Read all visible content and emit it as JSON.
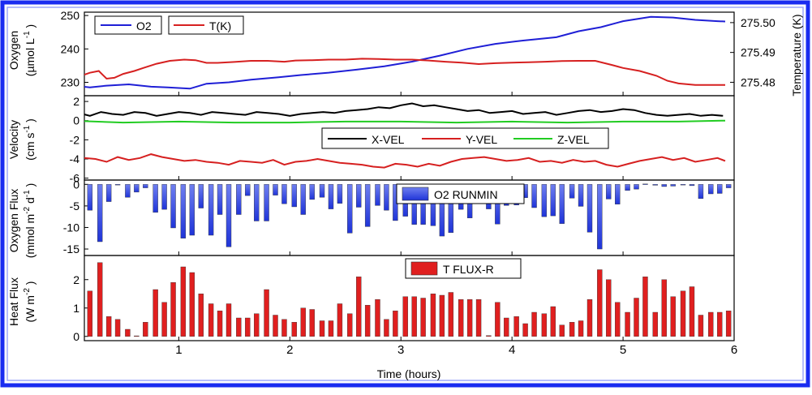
{
  "chart_data": [
    {
      "type": "line",
      "panel": "oxygen-temperature",
      "ylabel": "Oxygen (µmol L⁻¹)",
      "ylabel_lines": [
        "Oxygen",
        "(µmol L",
        "-1",
        ")"
      ],
      "ylim": [
        226,
        251
      ],
      "yticks": [
        "230",
        "240",
        "250"
      ],
      "y2label": "Temperature (K)",
      "y2lim": [
        275.4755,
        275.5035
      ],
      "y2ticks": [
        "275.48",
        "275.49",
        "275.50"
      ],
      "legend": "top-left",
      "series": [
        {
          "name": "O2",
          "color": "#1f1fd6",
          "axis": "left",
          "x": [
            0.05,
            0.2,
            0.35,
            0.55,
            0.75,
            0.9,
            1.1,
            1.25,
            1.45,
            1.65,
            1.9,
            2.1,
            2.35,
            2.6,
            2.85,
            3.1,
            3.35,
            3.6,
            3.85,
            4.1,
            4.4,
            4.6,
            4.8,
            5.0,
            5.25,
            5.45,
            5.65,
            5.85,
            5.92
          ],
          "values": [
            229,
            228.5,
            229,
            229.4,
            228.7,
            228.5,
            228.1,
            229.6,
            230,
            230.8,
            231.5,
            232.2,
            232.9,
            233.8,
            234.8,
            236.2,
            238,
            240,
            241.5,
            242.5,
            243.5,
            245.3,
            246.5,
            248.3,
            249.6,
            249.4,
            248.7,
            248.3,
            248.2
          ]
        },
        {
          "name": "T(K)",
          "color": "#d62020",
          "axis": "right",
          "x": [
            0.05,
            0.12,
            0.2,
            0.28,
            0.35,
            0.42,
            0.5,
            0.6,
            0.68,
            0.8,
            0.92,
            1.05,
            1.15,
            1.25,
            1.35,
            1.5,
            1.65,
            1.8,
            1.95,
            2.05,
            2.2,
            2.35,
            2.5,
            2.65,
            2.8,
            2.95,
            3.1,
            3.25,
            3.4,
            3.55,
            3.7,
            3.85,
            4.0,
            4.15,
            4.3,
            4.45,
            4.6,
            4.75,
            4.9,
            5.0,
            5.15,
            5.3,
            5.4,
            5.5,
            5.65,
            5.8,
            5.92
          ],
          "values": [
            275.4818,
            275.4822,
            275.4832,
            275.4838,
            275.4812,
            275.4815,
            275.4828,
            275.4838,
            275.4848,
            275.4862,
            275.4872,
            275.4876,
            275.4874,
            275.4865,
            275.4865,
            275.4868,
            275.4872,
            275.4872,
            275.4869,
            275.4873,
            275.4874,
            275.4876,
            275.4876,
            275.4879,
            275.4878,
            275.4876,
            275.4876,
            275.4873,
            275.4869,
            275.4866,
            275.4861,
            275.4864,
            275.4866,
            275.4867,
            275.4869,
            275.4871,
            275.4872,
            275.4872,
            275.4858,
            275.4848,
            275.4838,
            275.4822,
            275.4805,
            275.4796,
            275.4791,
            275.4791,
            275.4791
          ]
        }
      ]
    },
    {
      "type": "line",
      "panel": "velocity",
      "ylabel": "Velocity (cm s⁻¹)",
      "ylabel_lines": [
        "Velocity",
        "(cm s",
        "-1",
        ")"
      ],
      "ylim": [
        -6.2,
        2.6
      ],
      "yticks": [
        "2",
        "0",
        "-2",
        "-4",
        "-6"
      ],
      "legend": "right",
      "series": [
        {
          "name": "X-VEL",
          "color": "#000000",
          "x": [
            0.0,
            0.1,
            0.2,
            0.3,
            0.4,
            0.5,
            0.6,
            0.7,
            0.8,
            0.9,
            1.0,
            1.1,
            1.2,
            1.3,
            1.4,
            1.5,
            1.6,
            1.7,
            1.8,
            1.9,
            2.0,
            2.1,
            2.2,
            2.3,
            2.4,
            2.5,
            2.6,
            2.7,
            2.8,
            2.9,
            3.0,
            3.1,
            3.2,
            3.3,
            3.4,
            3.5,
            3.6,
            3.7,
            3.8,
            3.9,
            4.0,
            4.1,
            4.2,
            4.3,
            4.4,
            4.5,
            4.6,
            4.7,
            4.8,
            4.9,
            5.0,
            5.1,
            5.2,
            5.3,
            5.4,
            5.5,
            5.6,
            5.7,
            5.8,
            5.9
          ],
          "values": [
            0.6,
            0.8,
            0.5,
            0.9,
            0.7,
            0.6,
            0.9,
            0.8,
            0.5,
            0.7,
            0.9,
            0.8,
            0.6,
            0.9,
            0.8,
            0.7,
            0.6,
            0.9,
            0.8,
            0.7,
            0.5,
            0.7,
            0.8,
            0.9,
            0.8,
            1.0,
            1.1,
            1.2,
            1.4,
            1.3,
            1.6,
            1.8,
            1.5,
            1.6,
            1.4,
            1.2,
            1.0,
            1.1,
            0.8,
            0.9,
            1.0,
            0.7,
            0.8,
            0.9,
            0.6,
            0.8,
            1.0,
            1.1,
            0.9,
            1.0,
            1.2,
            1.1,
            0.8,
            0.6,
            0.5,
            0.6,
            0.7,
            0.5,
            0.6,
            0.5
          ]
        },
        {
          "name": "Y-VEL",
          "color": "#d62020",
          "x": [
            0.05,
            0.15,
            0.25,
            0.35,
            0.45,
            0.55,
            0.65,
            0.75,
            0.85,
            0.95,
            1.05,
            1.15,
            1.25,
            1.35,
            1.45,
            1.55,
            1.65,
            1.75,
            1.85,
            1.95,
            2.05,
            2.15,
            2.25,
            2.35,
            2.45,
            2.55,
            2.65,
            2.75,
            2.85,
            2.95,
            3.05,
            3.15,
            3.25,
            3.35,
            3.45,
            3.55,
            3.65,
            3.75,
            3.85,
            3.95,
            4.05,
            4.15,
            4.25,
            4.35,
            4.45,
            4.55,
            4.65,
            4.75,
            4.85,
            4.95,
            5.05,
            5.15,
            5.25,
            5.35,
            5.45,
            5.55,
            5.65,
            5.75,
            5.85,
            5.92
          ],
          "values": [
            -4.1,
            -3.9,
            -4.0,
            -4.3,
            -3.8,
            -4.1,
            -3.9,
            -3.5,
            -3.8,
            -4.0,
            -4.2,
            -4.1,
            -4.3,
            -4.4,
            -4.6,
            -4.2,
            -4.3,
            -4.4,
            -4.1,
            -4.6,
            -4.3,
            -4.2,
            -4.0,
            -4.2,
            -4.4,
            -4.5,
            -4.6,
            -4.8,
            -4.9,
            -4.5,
            -4.6,
            -4.8,
            -4.5,
            -4.7,
            -4.3,
            -4.0,
            -3.9,
            -3.8,
            -4.0,
            -4.2,
            -4.1,
            -3.9,
            -4.3,
            -4.2,
            -4.4,
            -4.1,
            -4.3,
            -4.2,
            -4.6,
            -4.8,
            -4.5,
            -4.2,
            -4.0,
            -3.8,
            -4.1,
            -3.9,
            -4.3,
            -4.1,
            -3.9,
            -4.2
          ]
        },
        {
          "name": "Z-VEL",
          "color": "#22cc22",
          "x": [
            0.0,
            0.5,
            1.0,
            1.5,
            2.0,
            2.5,
            3.0,
            3.5,
            4.0,
            4.5,
            5.0,
            5.5,
            5.92
          ],
          "values": [
            0.0,
            -0.2,
            -0.1,
            -0.2,
            -0.2,
            -0.1,
            -0.1,
            -0.2,
            -0.1,
            -0.2,
            -0.1,
            -0.1,
            0.0
          ]
        }
      ]
    },
    {
      "type": "bar",
      "panel": "oxygen-flux",
      "ylabel": "Oxygen Flux (mmol m⁻² d⁻¹)",
      "ylabel_lines": [
        "Oxygen Flux",
        "(mmol m",
        "-2",
        "d",
        "-1",
        ")"
      ],
      "ylim": [
        -16.5,
        1
      ],
      "yticks": [
        "-15",
        "-10",
        "-5",
        "0"
      ],
      "legend": "top",
      "series": [
        {
          "name": "O2 RUNMIN",
          "color": "#1f1fd6",
          "x": [
            0.04,
            0.12,
            0.2,
            0.29,
            0.37,
            0.45,
            0.54,
            0.62,
            0.7,
            0.79,
            0.87,
            0.95,
            1.04,
            1.12,
            1.2,
            1.29,
            1.37,
            1.45,
            1.54,
            1.62,
            1.7,
            1.79,
            1.87,
            1.95,
            2.04,
            2.12,
            2.2,
            2.29,
            2.37,
            2.45,
            2.54,
            2.62,
            2.7,
            2.79,
            2.87,
            2.95,
            3.04,
            3.12,
            3.2,
            3.29,
            3.37,
            3.45,
            3.54,
            3.62,
            3.7,
            3.79,
            3.87,
            3.95,
            4.04,
            4.12,
            4.2,
            4.29,
            4.37,
            4.45,
            4.54,
            4.62,
            4.7,
            4.79,
            4.87,
            4.95,
            5.04,
            5.12,
            5.2,
            5.29,
            5.37,
            5.45,
            5.54,
            5.62,
            5.7,
            5.79,
            5.87,
            5.95
          ],
          "values": [
            -0.8,
            -0.9,
            -6,
            -13.3,
            -4,
            -0.1,
            -3,
            -1.8,
            -0.8,
            -6.5,
            -5.8,
            -10.1,
            -12.5,
            -11.8,
            -5.5,
            -11.8,
            -7,
            -14.5,
            -7,
            -2.6,
            -8.5,
            -8.5,
            -2.5,
            -4.5,
            -5.2,
            -7,
            -3.5,
            -3,
            -5.7,
            -4.4,
            -11.3,
            -5.3,
            -9.8,
            -4.9,
            -6,
            -8.4,
            -7.4,
            -9.3,
            -9.3,
            -9.6,
            -12,
            -11.2,
            -5.8,
            -7.8,
            -2.5,
            -5.7,
            -9.2,
            -4.9,
            -4.8,
            -3.1,
            -5.4,
            -7.5,
            -7.3,
            -9.1,
            -3.2,
            -5.1,
            -11.1,
            -15,
            -3.4,
            -4.6,
            -1.4,
            -1.1,
            0.1,
            -0.2,
            -0.5,
            -0.4,
            -0.1,
            -0.3,
            -3.3,
            -2.2,
            -2.1,
            -0.8
          ]
        }
      ]
    },
    {
      "type": "bar",
      "panel": "heat-flux",
      "ylabel": "Heat Flux (W m⁻²)",
      "ylabel_lines": [
        "Heat Flux",
        "(W m",
        "-2",
        ")"
      ],
      "ylim": [
        -0.15,
        2.85
      ],
      "yticks": [
        "0",
        "1",
        "2"
      ],
      "xlabel": "Time (hours)",
      "xlim": [
        0.15,
        6.0
      ],
      "xticks": [
        "1",
        "2",
        "3",
        "4",
        "5",
        "6"
      ],
      "legend": "top",
      "series": [
        {
          "name": "T FLUX-R",
          "color": "#d62020",
          "x": [
            0.04,
            0.12,
            0.2,
            0.29,
            0.37,
            0.45,
            0.54,
            0.62,
            0.7,
            0.79,
            0.87,
            0.95,
            1.04,
            1.12,
            1.2,
            1.29,
            1.37,
            1.45,
            1.54,
            1.62,
            1.7,
            1.79,
            1.87,
            1.95,
            2.04,
            2.12,
            2.2,
            2.29,
            2.37,
            2.45,
            2.54,
            2.62,
            2.7,
            2.79,
            2.87,
            2.95,
            3.04,
            3.12,
            3.2,
            3.29,
            3.37,
            3.45,
            3.54,
            3.62,
            3.7,
            3.79,
            3.87,
            3.95,
            4.04,
            4.12,
            4.2,
            4.29,
            4.37,
            4.45,
            4.54,
            4.62,
            4.7,
            4.79,
            4.87,
            4.95,
            5.04,
            5.12,
            5.2,
            5.29,
            5.37,
            5.45,
            5.54,
            5.62,
            5.7,
            5.79,
            5.87,
            5.95
          ],
          "values": [
            0.5,
            0.35,
            1.6,
            2.6,
            0.7,
            0.6,
            0.25,
            0.02,
            0.5,
            1.65,
            1.2,
            1.9,
            2.45,
            2.25,
            1.5,
            1.15,
            0.9,
            1.15,
            0.65,
            0.65,
            0.8,
            1.65,
            0.75,
            0.6,
            0.5,
            1.0,
            0.95,
            0.55,
            0.55,
            1.15,
            0.8,
            2.1,
            1.1,
            1.3,
            0.6,
            0.9,
            1.4,
            1.4,
            1.35,
            1.5,
            1.45,
            1.55,
            1.3,
            1.3,
            1.3,
            0.03,
            1.2,
            0.65,
            0.7,
            0.45,
            0.85,
            0.8,
            1.05,
            0.4,
            0.5,
            0.55,
            1.3,
            2.35,
            2.0,
            1.2,
            0.85,
            1.35,
            2.1,
            0.85,
            2.0,
            1.4,
            1.6,
            1.75,
            0.75,
            0.85,
            0.85,
            0.9
          ]
        }
      ]
    }
  ]
}
